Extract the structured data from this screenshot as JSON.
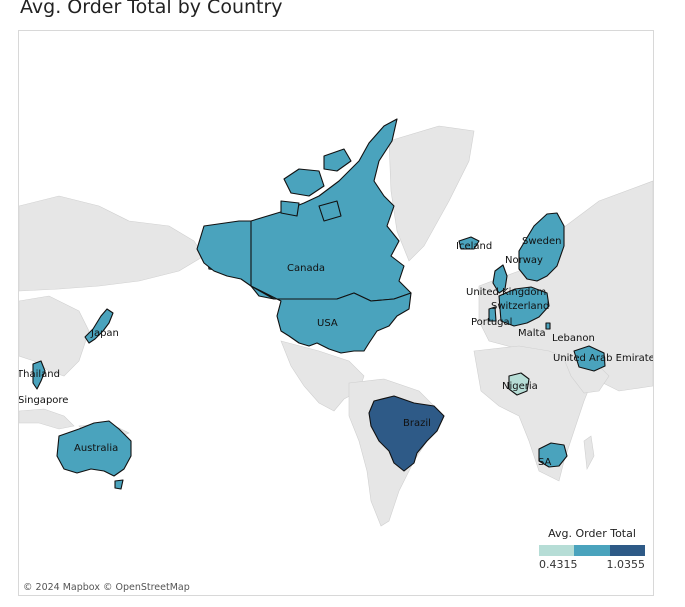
{
  "title": "Avg. Order Total by Country",
  "legend": {
    "title": "Avg. Order Total",
    "min_label": "0.4315",
    "max_label": "1.0355",
    "colors": [
      "#b6ddd6",
      "#4aa3bd",
      "#2e5a87"
    ]
  },
  "attribution": "© 2024 Mapbox © OpenStreetMap",
  "countries": [
    {
      "name": "Canada",
      "label": "Canada",
      "color": "#4aa3bd"
    },
    {
      "name": "USA",
      "label": "USA",
      "color": "#4aa3bd"
    },
    {
      "name": "Brazil",
      "label": "Brazil",
      "color": "#2e5a87"
    },
    {
      "name": "Australia",
      "label": "Australia",
      "color": "#4aa3bd"
    },
    {
      "name": "Japan",
      "label": "Japan",
      "color": "#4aa3bd"
    },
    {
      "name": "Thailand",
      "label": "Thailand",
      "color": "#4aa3bd"
    },
    {
      "name": "Singapore",
      "label": "Singapore",
      "color": "#4aa3bd"
    },
    {
      "name": "Iceland",
      "label": "Iceland",
      "color": "#4aa3bd"
    },
    {
      "name": "Sweden",
      "label": "Sweden",
      "color": "#4aa3bd"
    },
    {
      "name": "Norway",
      "label": "Norway",
      "color": "#4aa3bd"
    },
    {
      "name": "United Kingdom",
      "label": "United Kingdom",
      "color": "#4aa3bd"
    },
    {
      "name": "Switzerland",
      "label": "Switzerland",
      "color": "#4aa3bd"
    },
    {
      "name": "Portugal",
      "label": "Portugal",
      "color": "#4aa3bd"
    },
    {
      "name": "Malta",
      "label": "Malta",
      "color": "#4aa3bd"
    },
    {
      "name": "Lebanon",
      "label": "Lebanon",
      "color": "#4aa3bd"
    },
    {
      "name": "United Arab Emirates",
      "label": "United Arab Emirates",
      "color": "#4aa3bd"
    },
    {
      "name": "Nigeria",
      "label": "Nigeria",
      "color": "#b6ddd6"
    },
    {
      "name": "South Africa",
      "label": "SA",
      "color": "#4aa3bd"
    }
  ]
}
